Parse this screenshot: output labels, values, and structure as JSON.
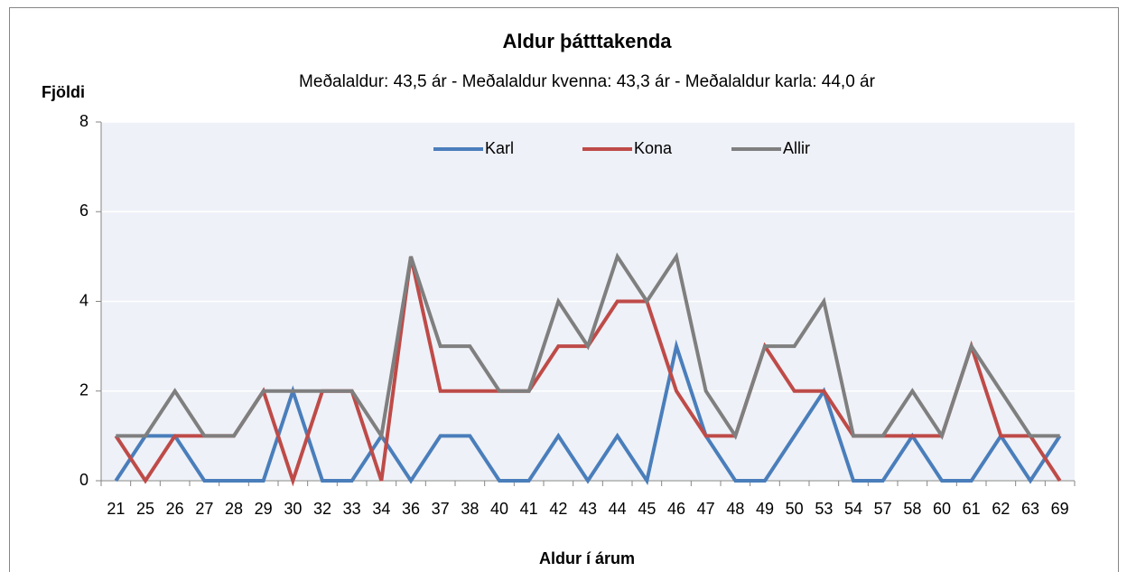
{
  "chart_data": {
    "type": "line",
    "title": "Aldur þátttakenda",
    "subtitle": "Meðalaldur: 43,5 ár - Meðalaldur kvenna: 43,3 ár - Meðalaldur karla: 44,0 ár",
    "y_label": "Fjöldi",
    "x_label": "Aldur í árum",
    "categories": [
      "21",
      "25",
      "26",
      "27",
      "28",
      "29",
      "30",
      "32",
      "33",
      "34",
      "36",
      "37",
      "38",
      "40",
      "41",
      "42",
      "43",
      "44",
      "45",
      "46",
      "47",
      "48",
      "49",
      "50",
      "53",
      "54",
      "57",
      "58",
      "60",
      "61",
      "62",
      "63",
      "69"
    ],
    "series": [
      {
        "name": "Karl",
        "color": "#4a7ebb",
        "values": [
          0,
          1,
          1,
          0,
          0,
          0,
          2,
          0,
          0,
          1,
          0,
          1,
          1,
          0,
          0,
          1,
          0,
          1,
          0,
          3,
          1,
          0,
          0,
          1,
          2,
          0,
          0,
          1,
          0,
          0,
          1,
          0,
          1
        ]
      },
      {
        "name": "Kona",
        "color": "#be4b48",
        "values": [
          1,
          0,
          1,
          1,
          1,
          2,
          0,
          2,
          2,
          0,
          5,
          2,
          2,
          2,
          2,
          3,
          3,
          4,
          4,
          2,
          1,
          1,
          3,
          2,
          2,
          1,
          1,
          1,
          1,
          3,
          1,
          1,
          0
        ]
      },
      {
        "name": "Allir",
        "color": "#7f7f7f",
        "values": [
          1,
          1,
          2,
          1,
          1,
          2,
          2,
          2,
          2,
          1,
          5,
          3,
          3,
          2,
          2,
          4,
          3,
          5,
          4,
          5,
          2,
          1,
          3,
          3,
          4,
          1,
          1,
          2,
          1,
          3,
          2,
          1,
          1
        ]
      }
    ],
    "ylim": [
      0,
      8
    ],
    "yticks": [
      0,
      2,
      4,
      6,
      8
    ],
    "grid": true,
    "legend": "top"
  }
}
